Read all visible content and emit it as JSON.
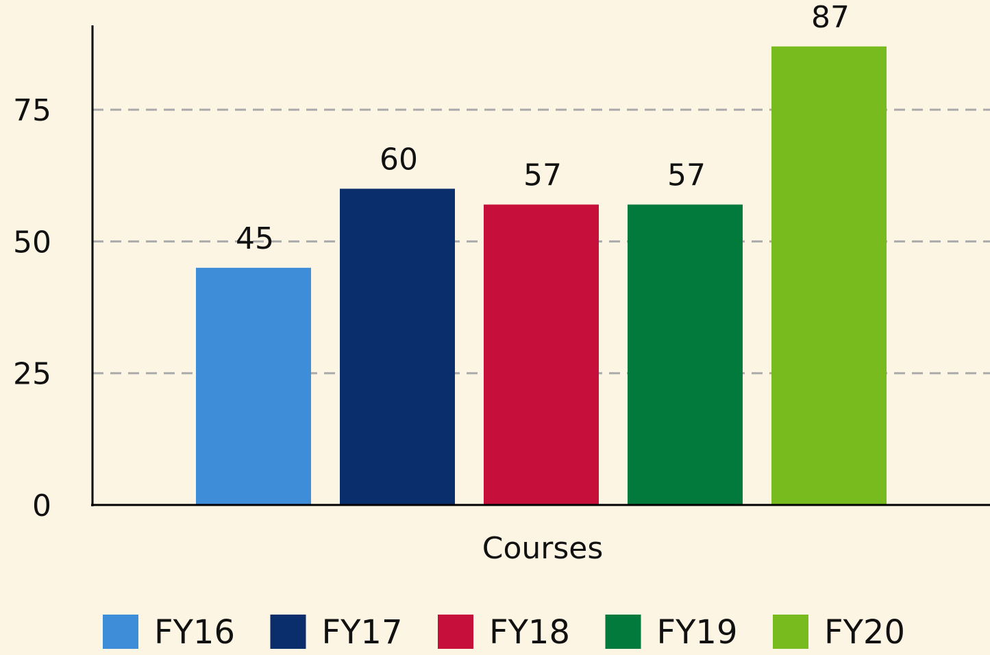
{
  "chart_data": {
    "type": "bar",
    "categories": [
      "Courses"
    ],
    "series": [
      {
        "name": "FY16",
        "color": "#3d8dd9",
        "values": [
          45
        ]
      },
      {
        "name": "FY17",
        "color": "#0a2d6b",
        "values": [
          60
        ]
      },
      {
        "name": "FY18",
        "color": "#c60f3a",
        "values": [
          57
        ]
      },
      {
        "name": "FY19",
        "color": "#017a3c",
        "values": [
          57
        ]
      },
      {
        "name": "FY20",
        "color": "#78bb1f",
        "values": [
          87
        ]
      }
    ],
    "ylim": [
      0,
      91
    ],
    "yticks": [
      0,
      25,
      50,
      75
    ],
    "grid": true,
    "legend": "bottom"
  }
}
